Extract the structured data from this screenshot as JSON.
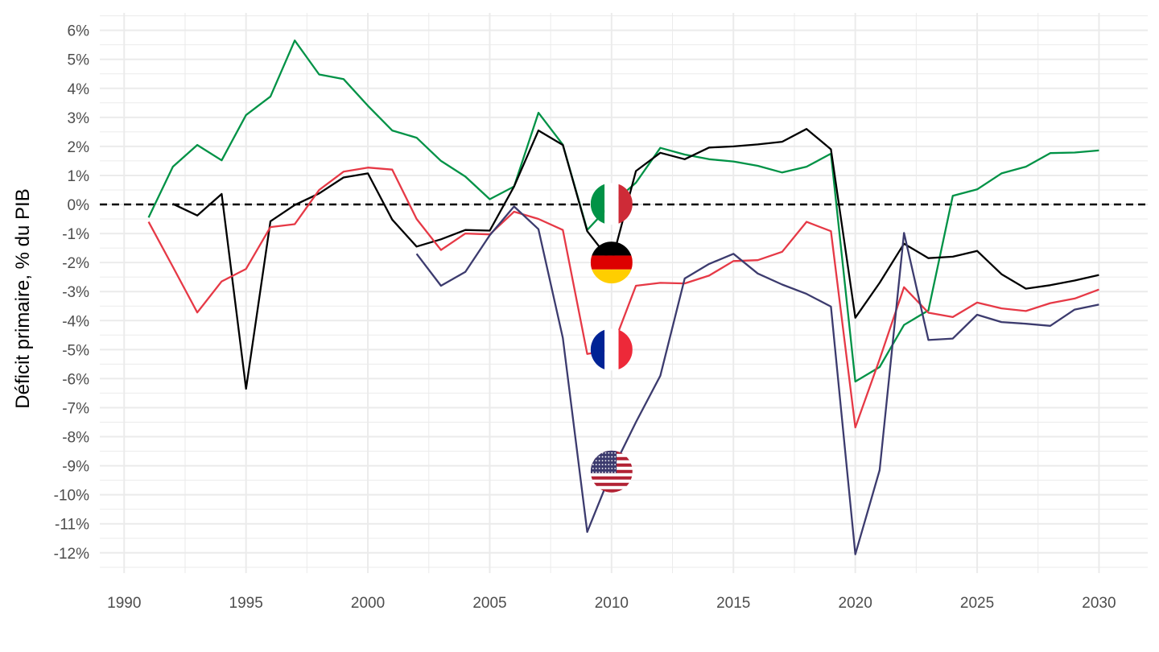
{
  "chart_data": {
    "type": "line",
    "title": "",
    "xlabel": "",
    "ylabel": "Déficit primaire, % du PIB",
    "xlim": [
      1989,
      2032
    ],
    "ylim": [
      -12.7,
      6.6
    ],
    "x_ticks": [
      1990,
      1995,
      2000,
      2005,
      2010,
      2015,
      2020,
      2025,
      2030
    ],
    "x_tick_labels": [
      "1990",
      "1995",
      "2000",
      "2005",
      "2010",
      "2015",
      "2020",
      "2025",
      "2030"
    ],
    "y_ticks": [
      6,
      5,
      4,
      3,
      2,
      1,
      0,
      -1,
      -2,
      -3,
      -4,
      -5,
      -6,
      -7,
      -8,
      -9,
      -10,
      -11,
      -12
    ],
    "y_tick_labels": [
      "6%",
      "5%",
      "4%",
      "3%",
      "2%",
      "1%",
      "0%",
      "-1%",
      "-2%",
      "-3%",
      "-4%",
      "-5%",
      "-6%",
      "-7%",
      "-8%",
      "-9%",
      "-10%",
      "-11%",
      "-12%"
    ],
    "grid": true,
    "reference_line": {
      "y": 0,
      "style": "dashed",
      "color": "#000000"
    },
    "legend": "flag icons at 2010",
    "series": [
      {
        "flag": "italy-flag-icon",
        "color": "#009246",
        "points": [
          [
            1991,
            -0.45
          ],
          [
            1992,
            1.3
          ],
          [
            1993,
            2.05
          ],
          [
            1994,
            1.52
          ],
          [
            1995,
            3.08
          ],
          [
            1996,
            3.72
          ],
          [
            1997,
            5.65
          ],
          [
            1998,
            4.48
          ],
          [
            1999,
            4.32
          ],
          [
            2000,
            3.4
          ],
          [
            2001,
            2.55
          ],
          [
            2002,
            2.3
          ],
          [
            2003,
            1.5
          ],
          [
            2004,
            0.96
          ],
          [
            2005,
            0.18
          ],
          [
            2006,
            0.62
          ],
          [
            2007,
            3.16
          ],
          [
            2008,
            2.06
          ],
          [
            2009,
            -0.88
          ],
          [
            2010,
            0.02
          ],
          [
            2011,
            0.75
          ],
          [
            2012,
            1.95
          ],
          [
            2013,
            1.72
          ],
          [
            2014,
            1.56
          ],
          [
            2015,
            1.48
          ],
          [
            2016,
            1.33
          ],
          [
            2017,
            1.1
          ],
          [
            2018,
            1.3
          ],
          [
            2019,
            1.75
          ],
          [
            2020,
            -6.1
          ],
          [
            2021,
            -5.6
          ],
          [
            2022,
            -4.15
          ],
          [
            2023,
            -3.65
          ],
          [
            2024,
            0.3
          ],
          [
            2025,
            0.52
          ],
          [
            2026,
            1.07
          ],
          [
            2027,
            1.3
          ],
          [
            2028,
            1.77
          ],
          [
            2029,
            1.79
          ],
          [
            2030,
            1.86
          ]
        ]
      },
      {
        "flag": "germany-flag-icon",
        "color": "#000000",
        "points": [
          [
            1992,
            0.02
          ],
          [
            1993,
            -0.38
          ],
          [
            1994,
            0.36
          ],
          [
            1995,
            -6.35
          ],
          [
            1996,
            -0.58
          ],
          [
            1997,
            -0.02
          ],
          [
            1998,
            0.38
          ],
          [
            1999,
            0.93
          ],
          [
            2000,
            1.07
          ],
          [
            2001,
            -0.52
          ],
          [
            2002,
            -1.45
          ],
          [
            2003,
            -1.2
          ],
          [
            2004,
            -0.88
          ],
          [
            2005,
            -0.9
          ],
          [
            2006,
            0.62
          ],
          [
            2007,
            2.55
          ],
          [
            2008,
            2.05
          ],
          [
            2009,
            -0.92
          ],
          [
            2010,
            -2.0
          ],
          [
            2011,
            1.15
          ],
          [
            2012,
            1.78
          ],
          [
            2013,
            1.56
          ],
          [
            2014,
            1.96
          ],
          [
            2015,
            2.0
          ],
          [
            2016,
            2.07
          ],
          [
            2017,
            2.16
          ],
          [
            2018,
            2.6
          ],
          [
            2019,
            1.9
          ],
          [
            2020,
            -3.9
          ],
          [
            2021,
            -2.7
          ],
          [
            2022,
            -1.35
          ],
          [
            2023,
            -1.85
          ],
          [
            2024,
            -1.8
          ],
          [
            2025,
            -1.6
          ],
          [
            2026,
            -2.4
          ],
          [
            2027,
            -2.9
          ],
          [
            2028,
            -2.78
          ],
          [
            2029,
            -2.62
          ],
          [
            2030,
            -2.43
          ]
        ]
      },
      {
        "flag": "france-flag-icon",
        "color": "#e63946",
        "points": [
          [
            1991,
            -0.6
          ],
          [
            1992,
            -2.15
          ],
          [
            1993,
            -3.72
          ],
          [
            1994,
            -2.65
          ],
          [
            1995,
            -2.22
          ],
          [
            1996,
            -0.78
          ],
          [
            1997,
            -0.68
          ],
          [
            1998,
            0.5
          ],
          [
            1999,
            1.13
          ],
          [
            2000,
            1.27
          ],
          [
            2001,
            1.2
          ],
          [
            2002,
            -0.5
          ],
          [
            2003,
            -1.57
          ],
          [
            2004,
            -1.0
          ],
          [
            2005,
            -1.03
          ],
          [
            2006,
            -0.25
          ],
          [
            2007,
            -0.5
          ],
          [
            2008,
            -0.88
          ],
          [
            2009,
            -5.15
          ],
          [
            2010,
            -5.0
          ],
          [
            2011,
            -2.8
          ],
          [
            2012,
            -2.7
          ],
          [
            2013,
            -2.72
          ],
          [
            2014,
            -2.45
          ],
          [
            2015,
            -1.95
          ],
          [
            2016,
            -1.92
          ],
          [
            2017,
            -1.63
          ],
          [
            2018,
            -0.6
          ],
          [
            2019,
            -0.92
          ],
          [
            2020,
            -7.68
          ],
          [
            2021,
            -5.33
          ],
          [
            2022,
            -2.85
          ],
          [
            2023,
            -3.73
          ],
          [
            2024,
            -3.88
          ],
          [
            2025,
            -3.38
          ],
          [
            2026,
            -3.58
          ],
          [
            2027,
            -3.67
          ],
          [
            2028,
            -3.4
          ],
          [
            2029,
            -3.24
          ],
          [
            2030,
            -2.93
          ]
        ]
      },
      {
        "flag": "usa-flag-icon",
        "color": "#3c3b6e",
        "points": [
          [
            2002,
            -1.7
          ],
          [
            2003,
            -2.8
          ],
          [
            2004,
            -2.32
          ],
          [
            2005,
            -1.06
          ],
          [
            2006,
            -0.07
          ],
          [
            2007,
            -0.85
          ],
          [
            2008,
            -4.6
          ],
          [
            2009,
            -11.28
          ],
          [
            2010,
            -9.2
          ],
          [
            2011,
            -7.5
          ],
          [
            2012,
            -5.9
          ],
          [
            2013,
            -2.55
          ],
          [
            2014,
            -2.05
          ],
          [
            2015,
            -1.7
          ],
          [
            2016,
            -2.38
          ],
          [
            2017,
            -2.76
          ],
          [
            2018,
            -3.08
          ],
          [
            2019,
            -3.52
          ],
          [
            2020,
            -12.05
          ],
          [
            2021,
            -9.15
          ],
          [
            2022,
            -0.98
          ],
          [
            2023,
            -4.67
          ],
          [
            2024,
            -4.62
          ],
          [
            2025,
            -3.8
          ],
          [
            2026,
            -4.05
          ],
          [
            2027,
            -4.11
          ],
          [
            2028,
            -4.18
          ],
          [
            2029,
            -3.62
          ],
          [
            2030,
            -3.45
          ]
        ]
      }
    ]
  },
  "colors": {
    "italy_green": "#009246",
    "italy_red": "#ce2b37",
    "germany_black": "#000000",
    "germany_red": "#dd0000",
    "germany_gold": "#ffce00",
    "france_blue": "#002395",
    "france_red": "#ed2939",
    "usa_blue": "#3c3b6e",
    "usa_red": "#b22234",
    "grid": "#ebebeb"
  }
}
